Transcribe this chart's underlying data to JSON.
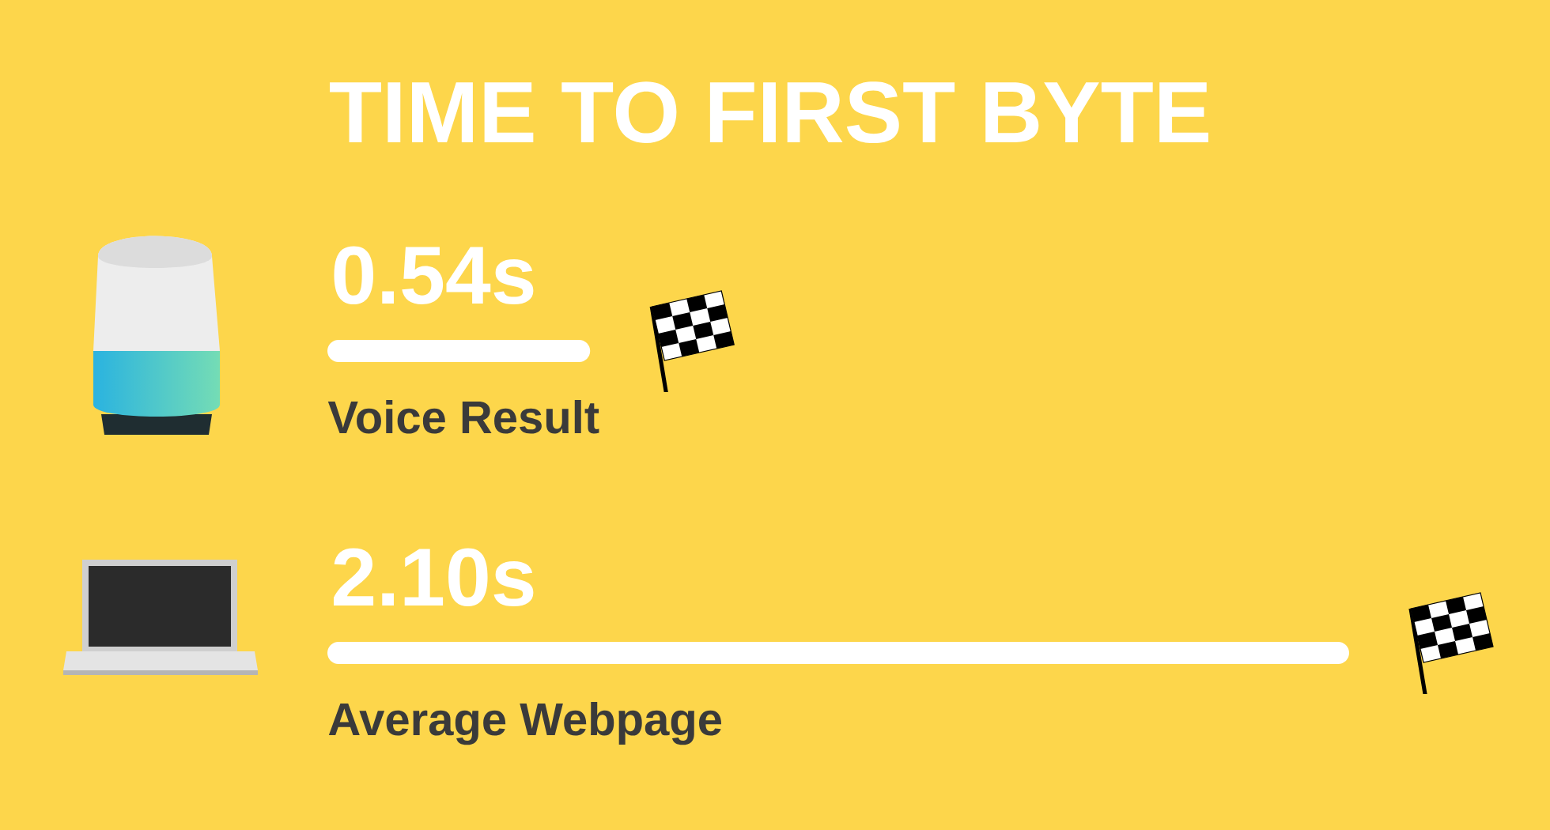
{
  "chart_data": {
    "type": "bar",
    "orientation": "horizontal",
    "title": "TIME TO FIRST BYTE",
    "categories": [
      "Voice Result",
      "Average Webpage"
    ],
    "values": [
      0.54,
      2.1
    ],
    "value_labels": [
      "0.54s",
      "2.10s"
    ],
    "color": "#ffffff"
  }
}
